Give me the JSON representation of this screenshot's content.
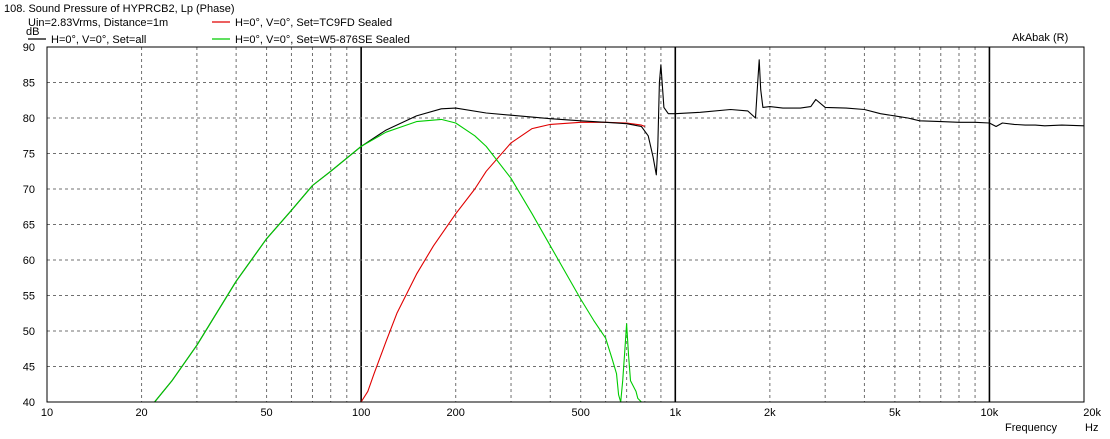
{
  "chart_data": {
    "type": "line",
    "title": "108. Sound Pressure of HYPRCB2, Lp (Phase)",
    "watermark": "AkAbak (R)",
    "ylabel": "dB",
    "xlabel": "Frequency",
    "xunit": "Hz",
    "xscale": "log",
    "xlim": [
      10,
      20000
    ],
    "ylim": [
      40,
      90
    ],
    "grid": true,
    "legend_position": "top-left",
    "x_ticks": [
      {
        "value": 10,
        "label": "10"
      },
      {
        "value": 20,
        "label": "20"
      },
      {
        "value": 50,
        "label": "50"
      },
      {
        "value": 100,
        "label": "100"
      },
      {
        "value": 200,
        "label": "200"
      },
      {
        "value": 500,
        "label": "500"
      },
      {
        "value": 1000,
        "label": "1k"
      },
      {
        "value": 2000,
        "label": "2k"
      },
      {
        "value": 5000,
        "label": "5k"
      },
      {
        "value": 10000,
        "label": "10k"
      },
      {
        "value": 20000,
        "label": "20k"
      }
    ],
    "y_ticks": [
      40,
      45,
      50,
      55,
      60,
      65,
      70,
      75,
      80,
      85,
      90
    ],
    "legend": [
      {
        "label": "Uin=2.83Vrms, Distance=1m",
        "color": ""
      },
      {
        "label": "H=0°, V=0°, Set=TC9FD Sealed",
        "color": "#e00000"
      },
      {
        "label": "H=0°, V=0°, Set=all",
        "color": "#000000"
      },
      {
        "label": "H=0°, V=0°, Set=W5-876SE Sealed",
        "color": "#00cc00"
      }
    ],
    "series": [
      {
        "name": "H=0°, V=0°, Set=TC9FD Sealed",
        "color": "#e00000",
        "x": [
          10,
          100,
          105,
          110,
          120,
          130,
          150,
          170,
          200,
          230,
          250,
          300,
          350,
          400,
          500,
          600,
          700,
          780,
          800
        ],
        "y": [
          40,
          40,
          41.5,
          44,
          48.5,
          52.5,
          58,
          62,
          66.5,
          70,
          72.5,
          76.5,
          78.5,
          79.1,
          79.4,
          79.4,
          79.3,
          79.0,
          78.8
        ]
      },
      {
        "name": "H=0°, V=0°, Set=all",
        "color": "#000000",
        "x": [
          10,
          22,
          25,
          30,
          40,
          50,
          60,
          70,
          80,
          100,
          120,
          150,
          180,
          200,
          250,
          300,
          400,
          500,
          600,
          700,
          780,
          820,
          850,
          870,
          880,
          890,
          900,
          920,
          950,
          1000,
          1200,
          1500,
          1700,
          1800,
          1830,
          1850,
          1870,
          1900,
          2000,
          2200,
          2500,
          2700,
          2800,
          3000,
          3500,
          4000,
          4500,
          5000,
          5500,
          6000,
          7000,
          8000,
          9000,
          10000,
          10500,
          11000,
          12000,
          13000,
          14000,
          15000,
          17000,
          20000
        ],
        "y": [
          40,
          40,
          43,
          48,
          57,
          63,
          67,
          70.5,
          72.5,
          76,
          78.3,
          80.3,
          81.3,
          81.4,
          80.7,
          80.4,
          79.9,
          79.6,
          79.4,
          79.2,
          78.8,
          77.5,
          74.5,
          72,
          76,
          85,
          87.5,
          81.5,
          80.6,
          80.6,
          80.8,
          81.2,
          81,
          80,
          85,
          88.2,
          84,
          81.5,
          81.6,
          81.4,
          81.4,
          81.6,
          82.6,
          81.5,
          81.4,
          81.2,
          80.6,
          80.3,
          80,
          79.6,
          79.5,
          79.4,
          79.4,
          79.3,
          78.8,
          79.3,
          79.1,
          79.0,
          79.0,
          78.9,
          79.0,
          78.9
        ]
      },
      {
        "name": "H=0°, V=0°, Set=W5-876SE Sealed",
        "color": "#00cc00",
        "x": [
          10,
          22,
          25,
          30,
          40,
          50,
          60,
          70,
          80,
          100,
          120,
          150,
          180,
          200,
          230,
          250,
          300,
          350,
          400,
          500,
          550,
          600,
          630,
          650,
          660,
          670,
          680,
          690,
          700,
          710,
          720,
          750,
          760,
          780,
          800,
          20000
        ],
        "y": [
          40,
          40,
          43,
          48,
          57,
          63,
          67,
          70.5,
          72.5,
          76,
          78,
          79.5,
          79.8,
          79.3,
          77.5,
          76,
          71.5,
          66.5,
          62,
          54.5,
          51.5,
          49,
          46,
          44,
          41,
          40,
          43,
          47,
          51,
          46.5,
          43,
          41.5,
          40.5,
          40,
          40,
          40
        ]
      }
    ]
  }
}
